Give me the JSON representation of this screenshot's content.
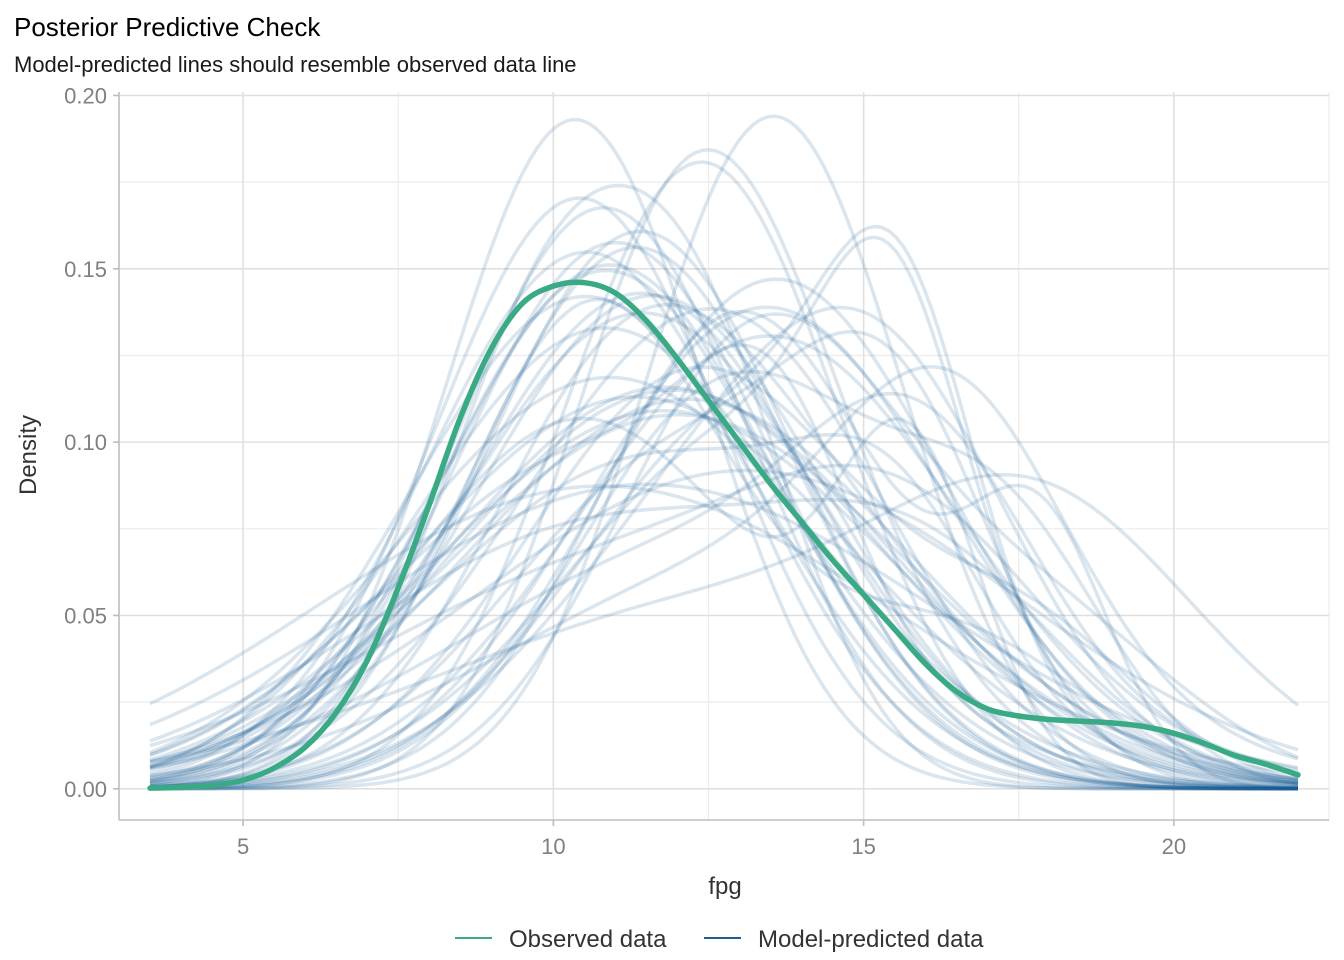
{
  "chart_data": {
    "type": "line",
    "title": "Posterior Predictive Check",
    "subtitle": "Model-predicted lines should resemble observed data line",
    "xlabel": "fpg",
    "ylabel": "Density",
    "xlim": [
      3.0,
      22.5
    ],
    "ylim": [
      -0.009,
      0.201
    ],
    "x_ticks": [
      5,
      10,
      15,
      20
    ],
    "x_tick_labels": [
      "5",
      "10",
      "15",
      "20"
    ],
    "y_ticks": [
      0,
      0.05,
      0.1,
      0.15,
      0.2
    ],
    "y_tick_labels": [
      "0.00",
      "0.05",
      "0.10",
      "0.15",
      "0.20"
    ],
    "grid": true,
    "legend_position": "bottom",
    "legend": [
      {
        "label": "Observed data",
        "color": "#3aaa85"
      },
      {
        "label": "Model-predicted data",
        "color": "#1b5e94"
      }
    ],
    "series": [
      {
        "name": "Observed data",
        "color": "#3aaa85",
        "x": [
          3.5,
          4.0,
          4.5,
          5.0,
          5.5,
          6.0,
          6.5,
          7.0,
          7.5,
          8.0,
          8.5,
          9.0,
          9.5,
          10.0,
          10.5,
          11.0,
          11.5,
          12.0,
          12.5,
          13.0,
          13.5,
          14.0,
          14.5,
          15.0,
          15.5,
          16.0,
          16.5,
          17.0,
          17.5,
          18.0,
          18.5,
          19.0,
          19.5,
          20.0,
          20.5,
          21.0,
          21.5,
          22.0
        ],
        "values": [
          0.0002,
          0.0004,
          0.001,
          0.0025,
          0.006,
          0.012,
          0.022,
          0.037,
          0.058,
          0.082,
          0.107,
          0.127,
          0.14,
          0.145,
          0.146,
          0.143,
          0.135,
          0.124,
          0.112,
          0.1,
          0.088,
          0.077,
          0.066,
          0.056,
          0.046,
          0.036,
          0.028,
          0.023,
          0.021,
          0.02,
          0.0195,
          0.019,
          0.018,
          0.016,
          0.013,
          0.0095,
          0.007,
          0.004
        ]
      }
    ],
    "predicted_draws": {
      "name": "Model-predicted data",
      "color": "#1b5e94",
      "count": 50,
      "mean_range": [
        10.2,
        13.6
      ],
      "peak_range": [
        0.09,
        0.19
      ],
      "x_range": [
        3.5,
        22.0
      ]
    }
  }
}
